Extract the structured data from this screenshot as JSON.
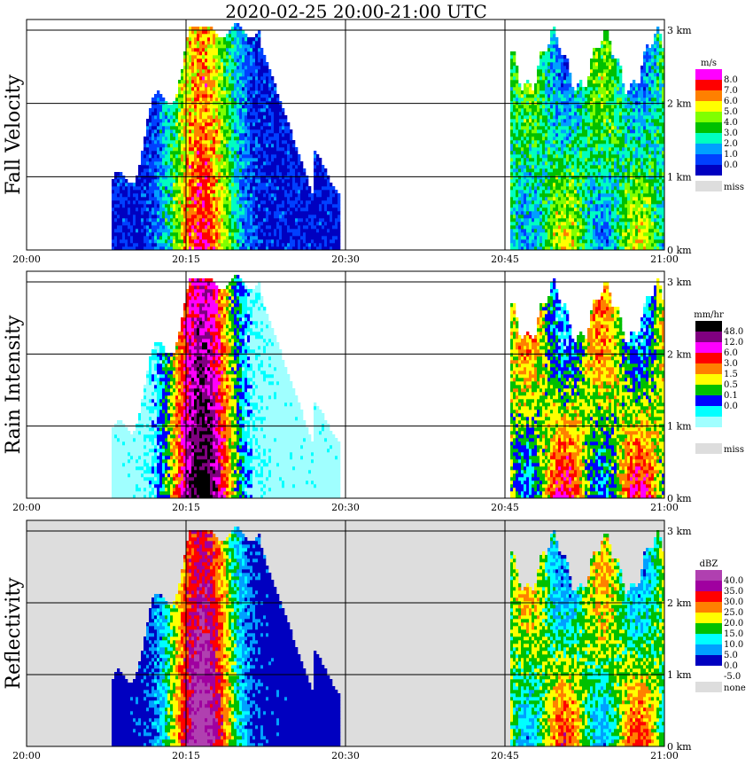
{
  "title": "2020-02-25   20:00-21:00 UTC",
  "chart_data": {
    "type": "heatmap",
    "x_range": [
      "20:00",
      "21:00"
    ],
    "y_range_km": [
      0,
      3
    ],
    "xticks": [
      "20:00",
      "20:15",
      "20:30",
      "20:45",
      "21:00"
    ],
    "yticks": [
      "0 km",
      "1 km",
      "2 km",
      "3 km"
    ],
    "grid": true,
    "panels": [
      {
        "ylabel": "Fall Velocity",
        "units": "m/s",
        "scale_labels": [
          "8.0",
          "7.0",
          "6.0",
          "5.0",
          "4.0",
          "3.0",
          "2.0",
          "1.0",
          "0.0"
        ],
        "colors": [
          "#ff00ff",
          "#ff0000",
          "#ff8000",
          "#ffff00",
          "#80ff00",
          "#00c000",
          "#00ffc0",
          "#00a0ff",
          "#0040ff",
          "#0000c0"
        ],
        "missing_label": "miss",
        "missing_color": "#dddddd"
      },
      {
        "ylabel": "Rain Intensity",
        "units": "mm/hr",
        "scale_labels": [
          "48.0",
          "12.0",
          "6.0",
          "3.0",
          "1.5",
          "0.5",
          "0.1",
          "0.0"
        ],
        "colors": [
          "#000000",
          "#800080",
          "#ff00ff",
          "#ff0000",
          "#ff8000",
          "#ffff00",
          "#00c000",
          "#0000ff",
          "#00ffff",
          "#a0ffff",
          "#ffffff"
        ],
        "missing_label": "miss",
        "missing_color": "#dddddd"
      },
      {
        "ylabel": "Reflectivity",
        "units": "dBZ",
        "scale_labels": [
          "40.0",
          "35.0",
          "30.0",
          "25.0",
          "20.0",
          "15.0",
          "10.0",
          "5.0",
          "0.0",
          "-5.0"
        ],
        "colors": [
          "#b040b0",
          "#a000a0",
          "#ff0000",
          "#ff8000",
          "#ffff00",
          "#00c000",
          "#00ffff",
          "#00a0ff",
          "#0000c0",
          "#ffffff"
        ],
        "missing_label": "none",
        "missing_color": "#dddddd"
      }
    ]
  }
}
